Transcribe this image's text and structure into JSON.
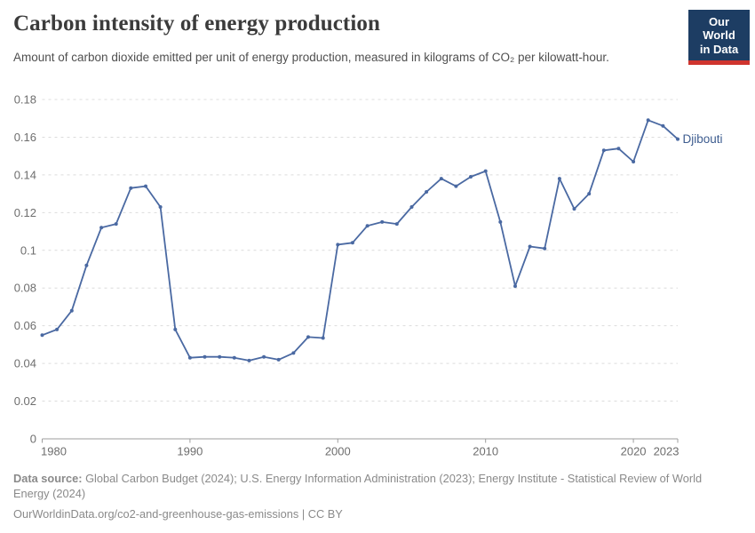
{
  "header": {
    "title": "Carbon intensity of energy production",
    "subtitle": "Amount of carbon dioxide emitted per unit of energy production, measured in kilograms of CO₂ per kilowatt-hour.",
    "logo": {
      "line1": "Our World",
      "line2": "in Data",
      "bg_color": "#1d3d63",
      "accent_color": "#cf342e",
      "text_color": "#ffffff"
    }
  },
  "chart_data": {
    "type": "line",
    "title": "Carbon intensity of energy production",
    "entity": "Djibouti",
    "unit": "kilograms of CO₂ per kilowatt-hour",
    "x": [
      1980,
      1981,
      1982,
      1983,
      1984,
      1985,
      1986,
      1987,
      1988,
      1989,
      1990,
      1991,
      1992,
      1993,
      1994,
      1995,
      1996,
      1997,
      1998,
      1999,
      2000,
      2001,
      2002,
      2003,
      2004,
      2005,
      2006,
      2007,
      2008,
      2009,
      2010,
      2011,
      2012,
      2013,
      2014,
      2015,
      2016,
      2017,
      2018,
      2019,
      2020,
      2021,
      2022,
      2023
    ],
    "series": [
      {
        "name": "Djibouti",
        "values": [
          0.055,
          0.058,
          0.068,
          0.092,
          0.112,
          0.114,
          0.133,
          0.134,
          0.123,
          0.058,
          0.043,
          0.0435,
          0.0435,
          0.043,
          0.0415,
          0.0435,
          0.042,
          0.0455,
          0.054,
          0.0535,
          0.103,
          0.104,
          0.113,
          0.115,
          0.114,
          0.123,
          0.131,
          0.138,
          0.134,
          0.139,
          0.142,
          0.115,
          0.081,
          0.102,
          0.101,
          0.138,
          0.122,
          0.13,
          0.153,
          0.154,
          0.147,
          0.169,
          0.166,
          0.159
        ]
      }
    ],
    "ylim": [
      0,
      0.18
    ],
    "yticks": [
      {
        "v": 0,
        "label": "0"
      },
      {
        "v": 0.02,
        "label": "0.02"
      },
      {
        "v": 0.04,
        "label": "0.04"
      },
      {
        "v": 0.06,
        "label": "0.06"
      },
      {
        "v": 0.08,
        "label": "0.08"
      },
      {
        "v": 0.1,
        "label": "0.1"
      },
      {
        "v": 0.12,
        "label": "0.12"
      },
      {
        "v": 0.14,
        "label": "0.14"
      },
      {
        "v": 0.16,
        "label": "0.16"
      },
      {
        "v": 0.18,
        "label": "0.18"
      }
    ],
    "xticks": [
      {
        "year": 1980,
        "label": "1980",
        "anchor": "start"
      },
      {
        "year": 1990,
        "label": "1990",
        "anchor": "middle"
      },
      {
        "year": 2000,
        "label": "2000",
        "anchor": "middle"
      },
      {
        "year": 2010,
        "label": "2010",
        "anchor": "middle"
      },
      {
        "year": 2020,
        "label": "2020",
        "anchor": "middle"
      },
      {
        "year": 2023,
        "label": "2023",
        "anchor": "end"
      }
    ],
    "grid": "horizontal-dashed",
    "legend_position": "end-of-line-label",
    "line_color": "#4a69a2",
    "series_label_color": "#3d5c8f",
    "grid_color": "#dcdcdc",
    "axis_color": "#9e9e9e",
    "tick_text_color": "#6e6e6e"
  },
  "footer": {
    "data_source_label": "Data source:",
    "data_source_text": " Global Carbon Budget (2024); U.S. Energy Information Administration (2023); Energy Institute - Statistical Review of World Energy (2024)",
    "citation": "OurWorldinData.org/co2-and-greenhouse-gas-emissions | CC BY"
  }
}
